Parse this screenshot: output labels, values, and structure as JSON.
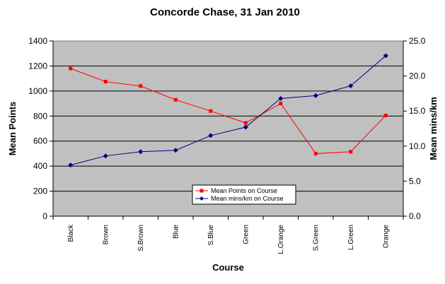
{
  "chart_data": {
    "type": "line",
    "title": "Concorde Chase, 31 Jan 2010",
    "xlabel": "Course",
    "ylabel": "Mean Points",
    "y2label": "Mean mins/km",
    "categories": [
      "Black",
      "Brown",
      "S.Brown",
      "Blue",
      "S.Blue",
      "Green",
      "L.Orange",
      "S.Green",
      "L.Green",
      "Orange"
    ],
    "ylim": [
      0,
      1400
    ],
    "yticks": [
      "0",
      "200",
      "400",
      "600",
      "800",
      "1000",
      "1200",
      "1400"
    ],
    "y2lim": [
      0,
      25
    ],
    "y2ticks": [
      "0.0",
      "5.0",
      "10.0",
      "15.0",
      "20.0",
      "25.0"
    ],
    "grid": true,
    "legend_position": "bottom-center",
    "plot_background": "#c0c0c0",
    "series": [
      {
        "name": "Mean Points on Course",
        "axis": "left",
        "color": "#ff0000",
        "marker": "square",
        "values": [
          1180,
          1075,
          1040,
          930,
          840,
          745,
          900,
          500,
          515,
          805
        ]
      },
      {
        "name": "Mean mins/km on Course",
        "axis": "right",
        "color": "#000080",
        "marker": "diamond",
        "values": [
          7.3,
          8.6,
          9.2,
          9.4,
          11.5,
          12.7,
          16.8,
          17.2,
          18.6,
          22.9
        ]
      }
    ]
  }
}
